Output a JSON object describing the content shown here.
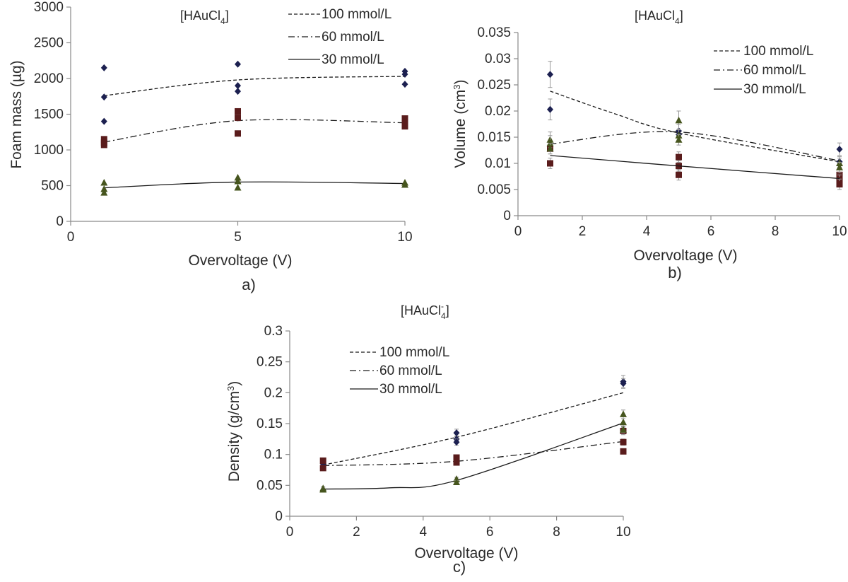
{
  "chart_data": [
    {
      "id": "a",
      "type": "scatter",
      "title": "[HAuCl",
      "title_sub": "4",
      "title_close": "]",
      "caption": "a)",
      "xlabel": "Overvoltage (V)",
      "ylabel": "Foam mass (µg)",
      "xlim": [
        0,
        10
      ],
      "ylim": [
        0,
        3000
      ],
      "xticks": [
        0,
        5,
        10
      ],
      "yticks": [
        0,
        500,
        1000,
        1500,
        2000,
        2500,
        3000
      ],
      "xtick_labels": [
        "0",
        "5",
        "10"
      ],
      "ytick_labels": [
        "0",
        "500",
        "1000",
        "1500",
        "2000",
        "2500",
        "3000"
      ],
      "grid": false,
      "legend_position": "top-right",
      "series": [
        {
          "name": "100 mmol/L",
          "marker": "diamond",
          "color": "#1c2050",
          "line": "dashed",
          "points": [
            [
              1,
              2150
            ],
            [
              1,
              1740
            ],
            [
              1,
              1400
            ],
            [
              5,
              2200
            ],
            [
              5,
              1900
            ],
            [
              5,
              1820
            ],
            [
              10,
              2100
            ],
            [
              10,
              2060
            ],
            [
              10,
              1920
            ]
          ],
          "trend": [
            [
              1,
              1760
            ],
            [
              5,
              1980
            ],
            [
              10,
              2030
            ]
          ]
        },
        {
          "name": "60 mmol/L",
          "marker": "square",
          "color": "#5a1c1c",
          "line": "dashdot",
          "points": [
            [
              1,
              1150
            ],
            [
              1,
              1100
            ],
            [
              1,
              1070
            ],
            [
              5,
              1540
            ],
            [
              5,
              1450
            ],
            [
              5,
              1230
            ],
            [
              10,
              1440
            ],
            [
              10,
              1380
            ],
            [
              10,
              1330
            ]
          ],
          "trend": [
            [
              1,
              1110
            ],
            [
              5,
              1410
            ],
            [
              10,
              1380
            ]
          ]
        },
        {
          "name": "30 mmol/L",
          "marker": "triangle",
          "color": "#46551e",
          "line": "solid",
          "points": [
            [
              1,
              540
            ],
            [
              1,
              450
            ],
            [
              1,
              400
            ],
            [
              5,
              610
            ],
            [
              5,
              560
            ],
            [
              5,
              470
            ],
            [
              10,
              540
            ],
            [
              10,
              510
            ]
          ],
          "trend": [
            [
              1,
              470
            ],
            [
              5,
              550
            ],
            [
              10,
              530
            ]
          ]
        }
      ]
    },
    {
      "id": "b",
      "type": "scatter",
      "title": "[HAuCl",
      "title_sub": "4",
      "title_close": "]",
      "caption": "b)",
      "xlabel": "Overvoltage (V)",
      "ylabel": "Volume (cm",
      "ylabel_sup": "3",
      "ylabel_close": ")",
      "xlim": [
        0,
        10
      ],
      "ylim": [
        0,
        0.035
      ],
      "xticks": [
        0,
        2,
        4,
        6,
        8,
        10
      ],
      "yticks": [
        0,
        0.005,
        0.01,
        0.015,
        0.02,
        0.025,
        0.03,
        0.035
      ],
      "xtick_labels": [
        "0",
        "2",
        "4",
        "6",
        "8",
        "10"
      ],
      "ytick_labels": [
        "0",
        "0.005",
        "0.01",
        "0.015",
        "0.02",
        "0.025",
        "0.03",
        "0.035"
      ],
      "grid": false,
      "legend_position": "top-right",
      "series": [
        {
          "name": "100 mmol/L",
          "marker": "diamond",
          "color": "#1c2050",
          "line": "dashed",
          "points": [
            [
              1,
              0.027
            ],
            [
              1,
              0.0203
            ],
            [
              5,
              0.0162
            ],
            [
              5,
              0.0155
            ],
            [
              10,
              0.0127
            ],
            [
              10,
              0.0103
            ]
          ],
          "errors": [
            0.0025,
            0.002,
            0.0012,
            0.001,
            0.0012,
            0.001
          ],
          "trend": [
            [
              1,
              0.0238
            ],
            [
              3,
              0.0195
            ],
            [
              5,
              0.0158
            ],
            [
              10,
              0.0103
            ]
          ]
        },
        {
          "name": "60 mmol/L",
          "marker": "square",
          "color": "#5a1c1c",
          "line": "dashdot",
          "points": [
            [
              1,
              0.0128
            ],
            [
              1,
              0.01
            ],
            [
              5,
              0.0112
            ],
            [
              5,
              0.0095
            ],
            [
              5,
              0.0078
            ],
            [
              10,
              0.0078
            ],
            [
              10,
              0.0068
            ],
            [
              10,
              0.006
            ]
          ],
          "errors": [
            0.001,
            0.001,
            0.001,
            0.001,
            0.001,
            0.001,
            0.001,
            0.001
          ],
          "trend": [
            [
              1,
              0.0137
            ],
            [
              5,
              0.016
            ],
            [
              10,
              0.0105
            ]
          ]
        },
        {
          "name": "30 mmol/L",
          "marker": "triangle",
          "color": "#46551e",
          "line": "solid",
          "points": [
            [
              1,
              0.0145
            ],
            [
              1,
              0.0138
            ],
            [
              1,
              0.0128
            ],
            [
              5,
              0.0182
            ],
            [
              5,
              0.0153
            ],
            [
              5,
              0.0145
            ],
            [
              10,
              0.01
            ],
            [
              10,
              0.0092
            ]
          ],
          "errors": [
            0.0015,
            0.0015,
            0.001,
            0.0018,
            0.0012,
            0.001,
            0.001,
            0.001
          ],
          "trend": [
            [
              1,
              0.0115
            ],
            [
              5,
              0.0095
            ],
            [
              10,
              0.0071
            ]
          ]
        }
      ]
    },
    {
      "id": "c",
      "type": "scatter",
      "title": "[HAuCl",
      "title_sub": "4",
      "title_sup": "-",
      "title_close": "]",
      "caption": "c)",
      "xlabel": "Overvoltage (V)",
      "ylabel": "Density (g/cm",
      "ylabel_sup": "3",
      "ylabel_close": ")",
      "xlim": [
        0,
        10
      ],
      "ylim": [
        0,
        0.3
      ],
      "xticks": [
        0,
        2,
        4,
        6,
        8,
        10
      ],
      "yticks": [
        0,
        0.05,
        0.1,
        0.15,
        0.2,
        0.25,
        0.3
      ],
      "xtick_labels": [
        "0",
        "2",
        "4",
        "6",
        "8",
        "10"
      ],
      "ytick_labels": [
        "0",
        "0.05",
        "0.1",
        "0.15",
        "0.2",
        "0.25",
        "0.3"
      ],
      "grid": false,
      "legend_position": "top-left",
      "series": [
        {
          "name": "100 mmol/L",
          "marker": "diamond",
          "color": "#1c2050",
          "line": "dashed",
          "points": [
            [
              1,
              0.085
            ],
            [
              5,
              0.135
            ],
            [
              5,
              0.125
            ],
            [
              5,
              0.12
            ],
            [
              10,
              0.218
            ],
            [
              10,
              0.215
            ]
          ],
          "errors": [
            0.004,
            0.006,
            0.005,
            0.005,
            0.01,
            0.008
          ],
          "trend": [
            [
              1,
              0.083
            ],
            [
              5,
              0.128
            ],
            [
              10,
              0.2
            ]
          ]
        },
        {
          "name": "60 mmol/L",
          "marker": "square",
          "color": "#5a1c1c",
          "line": "dashdot",
          "points": [
            [
              1,
              0.09
            ],
            [
              1,
              0.078
            ],
            [
              5,
              0.095
            ],
            [
              5,
              0.087
            ],
            [
              10,
              0.138
            ],
            [
              10,
              0.12
            ],
            [
              10,
              0.105
            ]
          ],
          "errors": [
            0.004,
            0.004,
            0.004,
            0.004,
            0.006,
            0.005,
            0.004
          ],
          "trend": [
            [
              1,
              0.082
            ],
            [
              5,
              0.089
            ],
            [
              10,
              0.121
            ]
          ]
        },
        {
          "name": "30 mmol/L",
          "marker": "triangle",
          "color": "#46551e",
          "line": "solid",
          "points": [
            [
              1,
              0.045
            ],
            [
              1,
              0.043
            ],
            [
              5,
              0.06
            ],
            [
              5,
              0.055
            ],
            [
              10,
              0.165
            ],
            [
              10,
              0.152
            ],
            [
              10,
              0.14
            ]
          ],
          "errors": [
            0.003,
            0.003,
            0.003,
            0.003,
            0.007,
            0.006,
            0.005
          ],
          "trend": [
            [
              1,
              0.044
            ],
            [
              3,
              0.046
            ],
            [
              5,
              0.058
            ],
            [
              10,
              0.151
            ]
          ]
        }
      ]
    }
  ]
}
